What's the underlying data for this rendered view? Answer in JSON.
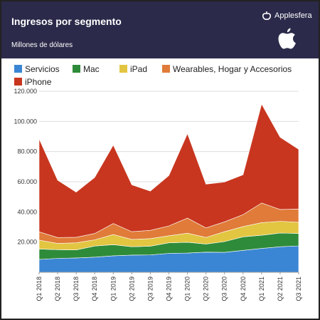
{
  "header": {
    "title": "Ingresos por segmento",
    "subtitle": "Millones de dólares",
    "brand": "Applesfera",
    "bg_color": "#2b2a4a"
  },
  "chart_data": {
    "type": "area",
    "stacked": true,
    "title": "Ingresos por segmento",
    "subtitle": "Millones de dólares",
    "categories": [
      "Q1 2018",
      "Q2 2018",
      "Q3 2018",
      "Q4 2018",
      "Q1 2019",
      "Q2 2019",
      "Q3 2019",
      "Q4 2019",
      "Q1 2020",
      "Q2 2020",
      "Q3 2020",
      "Q4 2020",
      "Q1 2021",
      "Q2 2021",
      "Q3 2021"
    ],
    "series": [
      {
        "name": "Servicios",
        "color": "#3b86d4",
        "values": [
          8500,
          9200,
          9500,
          10000,
          10900,
          11400,
          11500,
          12500,
          12700,
          13300,
          13200,
          14500,
          15800,
          16900,
          17500
        ]
      },
      {
        "name": "Mac",
        "color": "#2e8b3a",
        "values": [
          6900,
          5800,
          5300,
          7400,
          7400,
          5500,
          5800,
          7000,
          7200,
          5400,
          7100,
          9000,
          8700,
          9100,
          8200
        ]
      },
      {
        "name": "iPad",
        "color": "#e2c541",
        "values": [
          5900,
          4100,
          4700,
          4100,
          6700,
          4900,
          5000,
          4700,
          6000,
          4400,
          6600,
          6800,
          8400,
          7800,
          7400
        ]
      },
      {
        "name": "Wearables, Hogar y Accesorios",
        "color": "#e07b39",
        "values": [
          5500,
          3900,
          3700,
          4200,
          7300,
          5100,
          5500,
          6500,
          10000,
          6300,
          6500,
          7900,
          13000,
          7800,
          8800
        ]
      },
      {
        "name": "iPhone",
        "color": "#c8361f",
        "values": [
          61600,
          38000,
          29900,
          37200,
          52000,
          31000,
          26000,
          33400,
          56000,
          29000,
          26400,
          26400,
          65600,
          47900,
          39600
        ]
      }
    ],
    "ylim": [
      0,
      120000
    ],
    "yticks": [
      20000,
      40000,
      60000,
      80000,
      100000,
      120000
    ],
    "ytick_labels": [
      "20.000",
      "40.000",
      "60.000",
      "80.000",
      "100.000",
      "120.000"
    ],
    "grid": true,
    "legend_position": "top"
  }
}
